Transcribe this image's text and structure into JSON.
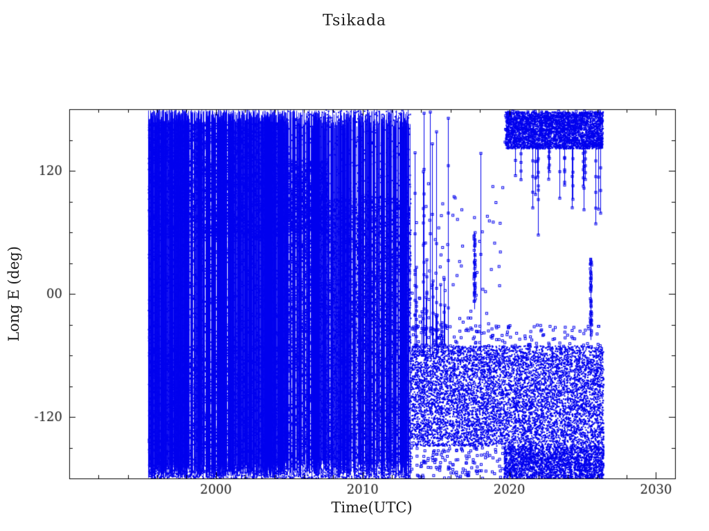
{
  "chart_data": {
    "type": "scatter",
    "title": "Tsikada",
    "xlabel": "Time(UTC)",
    "ylabel": "Long E (deg)",
    "marker_color": "#0000ee",
    "data_representation": "density_regions",
    "axes": {
      "xlim": [
        1990,
        2031.3
      ],
      "ylim": [
        -180,
        180
      ],
      "xticks": [
        {
          "value": 2000,
          "label": "2000"
        },
        {
          "value": 2010,
          "label": "2010"
        },
        {
          "value": 2020,
          "label": "2020"
        },
        {
          "value": 2030,
          "label": "2030"
        }
      ],
      "yticks": [
        {
          "value": 120,
          "label": "120"
        },
        {
          "value": 0,
          "label": "00"
        },
        {
          "value": -120,
          "label": "-120"
        }
      ],
      "x_minor_step": 2,
      "y_minor_step": 30,
      "major_len": 9,
      "minor_len": 5,
      "grid": false,
      "legend": false,
      "frame_color": "#000000",
      "text_color": "#1a1a1a"
    },
    "regions": [
      {
        "type": "vlines",
        "t": [
          1995.35,
          2004.6
        ],
        "y": [
          -180,
          180
        ],
        "count": 650,
        "jitter": 20,
        "alpha": 0.85
      },
      {
        "type": "cloud",
        "t": [
          1995.35,
          2004.6
        ],
        "y": [
          55,
          168
        ],
        "count": 6500,
        "size": 2
      },
      {
        "type": "cloud",
        "t": [
          1995.35,
          2004.6
        ],
        "y": [
          -180,
          -50
        ],
        "count": 5500,
        "size": 2
      },
      {
        "type": "cloud",
        "t": [
          1995.35,
          2004.6
        ],
        "y": [
          -55,
          60
        ],
        "count": 2300,
        "size": 2
      },
      {
        "type": "vlines",
        "t": [
          2004.6,
          2013.25
        ],
        "y": [
          -180,
          180
        ],
        "count": 430,
        "jitter": 28,
        "alpha": 0.85
      },
      {
        "type": "cloud",
        "t": [
          2004.6,
          2013.25
        ],
        "y": [
          -180,
          95
        ],
        "count": 11000,
        "size": 2
      },
      {
        "type": "cloud",
        "t": [
          2004.6,
          2013.25
        ],
        "y": [
          95,
          180
        ],
        "count": 650,
        "size": 2
      },
      {
        "type": "cloud",
        "t": [
          2004.6,
          2007.6
        ],
        "y": [
          60,
          130
        ],
        "count": 1600,
        "size": 2
      },
      {
        "type": "cloud",
        "t": [
          2013.25,
          2026.4
        ],
        "y": [
          -148,
          -50
        ],
        "count": 8500,
        "size": 2
      },
      {
        "type": "cloud",
        "t": [
          2019.6,
          2026.4
        ],
        "y": [
          -180,
          -148
        ],
        "count": 2800,
        "size": 2
      },
      {
        "type": "squares",
        "t": [
          2013.25,
          2019.6
        ],
        "y": [
          -180,
          -150
        ],
        "count": 130,
        "size": 3
      },
      {
        "type": "squares",
        "t": [
          2013.3,
          2026.3
        ],
        "y": [
          -52,
          -30
        ],
        "count": 120,
        "size": 3
      },
      {
        "type": "spikes",
        "t": [
          2013.3,
          2020.1
        ],
        "base": -60,
        "tip": [
          110,
          180
        ],
        "count": 9
      },
      {
        "type": "spikes",
        "t": [
          2013.3,
          2016.2
        ],
        "base": -50,
        "tip": [
          -30,
          45
        ],
        "count": 14
      },
      {
        "type": "squares",
        "t": [
          2013.3,
          2019.6
        ],
        "y": [
          -45,
          110
        ],
        "count": 80,
        "size": 3
      },
      {
        "type": "cloud",
        "t": [
          2019.7,
          2026.35
        ],
        "y": [
          142,
          178
        ],
        "count": 3500,
        "size": 2
      },
      {
        "type": "squares",
        "t": [
          2019.7,
          2026.35
        ],
        "y": [
          142,
          178
        ],
        "count": 300,
        "size": 3
      },
      {
        "type": "spikes",
        "t": [
          2019.8,
          2026.2
        ],
        "base": 145,
        "tip": [
          55,
          135
        ],
        "count": 20
      },
      {
        "type": "column",
        "t": 2017.6,
        "y": [
          -15,
          60
        ],
        "count": 40,
        "size": 3
      },
      {
        "type": "column",
        "t": 2025.55,
        "y": [
          -45,
          35
        ],
        "count": 45,
        "size": 3
      }
    ]
  }
}
